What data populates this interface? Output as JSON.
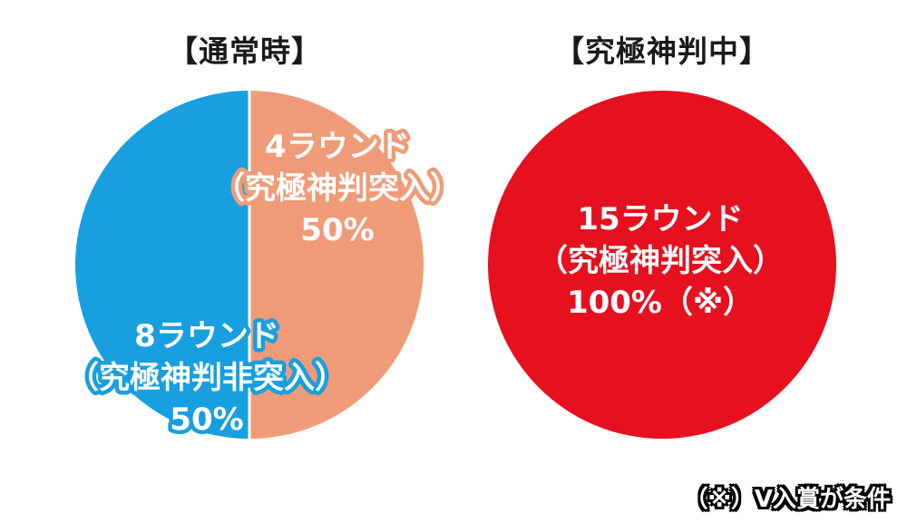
{
  "chart_data": [
    {
      "type": "pie",
      "title": "【通常時】",
      "slices": [
        {
          "label_lines": [
            "4ラウンド",
            "（究極神判突入）",
            "50%"
          ],
          "value": 50,
          "color": "#f09b78",
          "outline": "#f09b78"
        },
        {
          "label_lines": [
            "8ラウンド",
            "（究極神判非突入）",
            "50%"
          ],
          "value": 50,
          "color": "#179fe0",
          "outline": "#179fe0"
        }
      ]
    },
    {
      "type": "pie",
      "title": "【究極神判中】",
      "slices": [
        {
          "label_lines": [
            "15ラウンド",
            "（究極神判突入）",
            "100%（※）"
          ],
          "value": 100,
          "color": "#e6101e",
          "outline": "#e6101e"
        }
      ]
    }
  ],
  "footnote": "（※）V入賞が条件"
}
